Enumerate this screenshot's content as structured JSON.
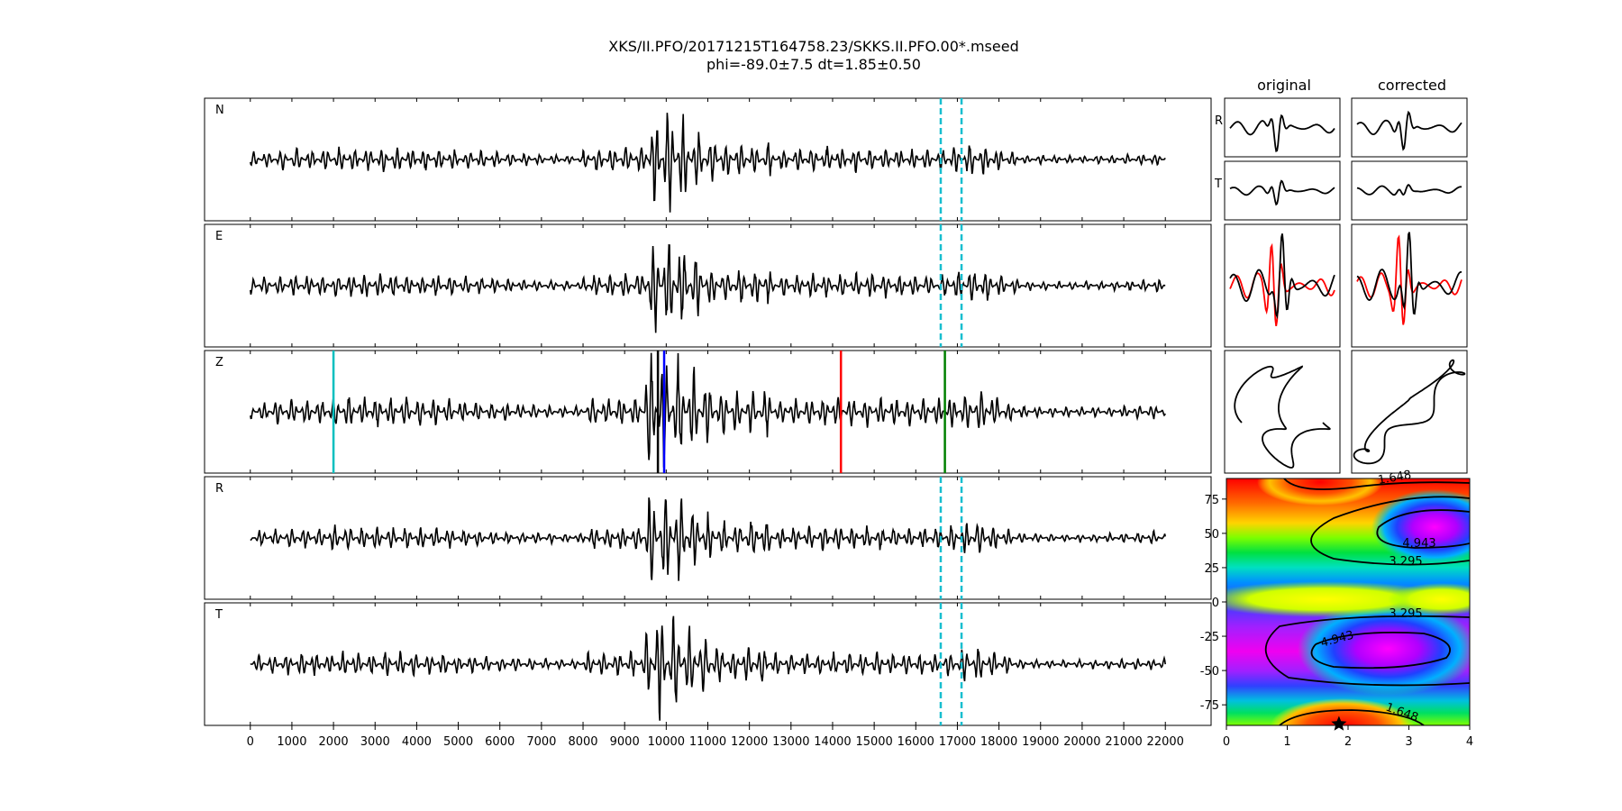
{
  "title": {
    "line1": "XKS/II.PFO/20171215T164758.23/SKKS.II.PFO.00*.mseed",
    "line2": "phi=-89.0±7.5 dt=1.85±0.50"
  },
  "side_headers": {
    "original": "original",
    "corrected": "corrected"
  },
  "chart_data": [
    {
      "type": "line",
      "panel": "seismograms",
      "xlim": [
        -1100,
        23100
      ],
      "xticks": [
        0,
        1000,
        2000,
        3000,
        4000,
        5000,
        6000,
        7000,
        8000,
        9000,
        10000,
        11000,
        12000,
        13000,
        14000,
        15000,
        16000,
        17000,
        18000,
        19000,
        20000,
        21000,
        22000
      ],
      "trace_range": [
        0,
        22000
      ],
      "series": [
        {
          "name": "N",
          "channel": "N"
        },
        {
          "name": "E",
          "channel": "E"
        },
        {
          "name": "Z",
          "channel": "Z"
        },
        {
          "name": "R",
          "channel": "R"
        },
        {
          "name": "T",
          "channel": "T"
        }
      ],
      "window_lines": {
        "x": [
          16600,
          17100
        ],
        "color": "#17becf",
        "channels": [
          "N",
          "E",
          "R",
          "T"
        ]
      },
      "phase_markers": [
        {
          "x": 2000,
          "color": "#00bfbf"
        },
        {
          "x": 9800,
          "color": "#000000"
        },
        {
          "x": 9950,
          "color": "#0000ff"
        },
        {
          "x": 14200,
          "color": "#ff0000"
        },
        {
          "x": 16700,
          "color": "#008000"
        }
      ]
    },
    {
      "type": "line",
      "panel": "original-waveforms",
      "series": [
        {
          "name": "R"
        },
        {
          "name": "T"
        }
      ],
      "overlay_colors": [
        "#000000",
        "#ff0000"
      ]
    },
    {
      "type": "line",
      "panel": "corrected-waveforms",
      "series": [
        {
          "name": "R"
        },
        {
          "name": "T"
        }
      ],
      "overlay_colors": [
        "#000000",
        "#ff0000"
      ]
    },
    {
      "type": "heatmap",
      "panel": "error-surface",
      "xlim": [
        0,
        4
      ],
      "ylim": [
        -90,
        90
      ],
      "xticks": [
        0,
        1,
        2,
        3,
        4
      ],
      "yticks": [
        75,
        50,
        25,
        0,
        -25,
        -50,
        -75
      ],
      "contour_labels": [
        "1.648",
        "4.943",
        "3.295",
        "3.295",
        "4.943",
        "1.648"
      ],
      "best_fit": {
        "dt": 1.85,
        "phi": -89.0
      },
      "colormap": "hsv"
    }
  ]
}
